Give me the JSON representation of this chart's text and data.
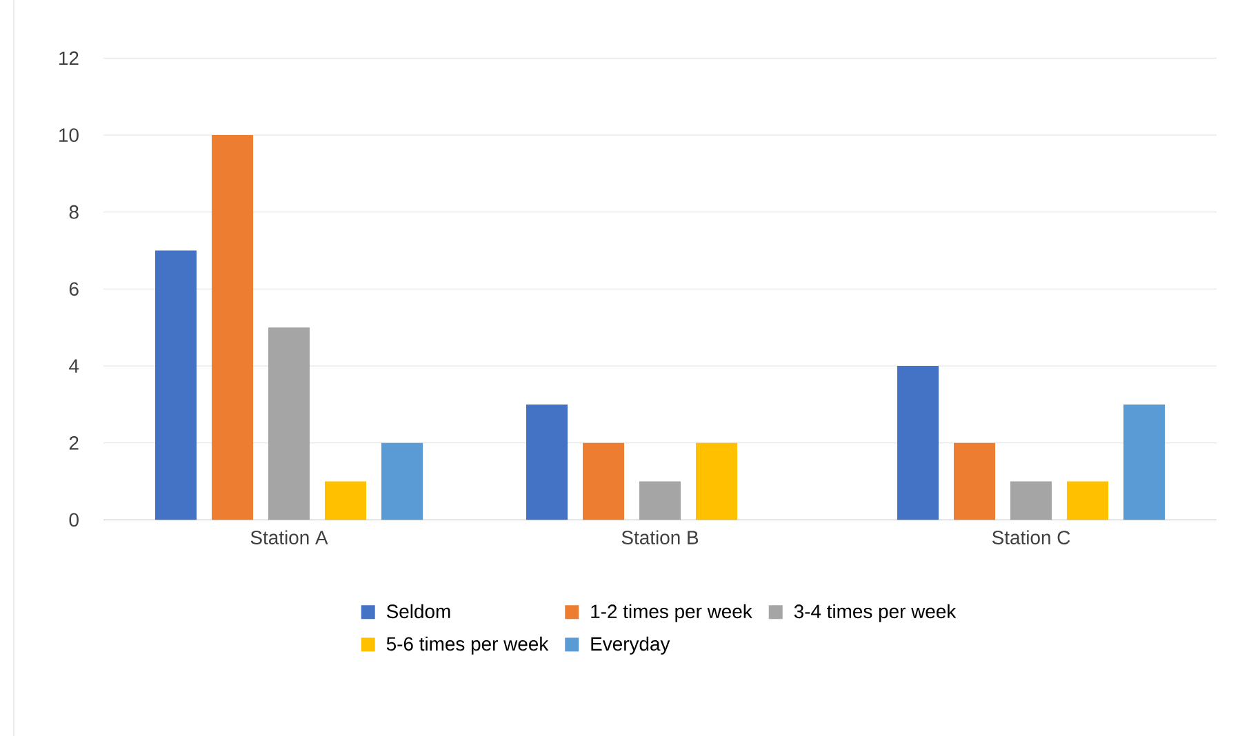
{
  "chart_data": {
    "type": "bar",
    "categories": [
      "Station A",
      "Station B",
      "Station C"
    ],
    "series": [
      {
        "name": "Seldom",
        "color": "#4472c4",
        "values": [
          7,
          3,
          4
        ]
      },
      {
        "name": "1-2 times per week",
        "color": "#ed7d31",
        "values": [
          10,
          2,
          2
        ]
      },
      {
        "name": "3-4 times per week",
        "color": "#a5a5a5",
        "values": [
          5,
          1,
          1
        ]
      },
      {
        "name": "5-6 times per week",
        "color": "#ffc000",
        "values": [
          1,
          2,
          1
        ]
      },
      {
        "name": "Everyday",
        "color": "#5b9bd5",
        "values": [
          2,
          0,
          3
        ]
      }
    ],
    "ylim": [
      0,
      12
    ],
    "yticks": [
      0,
      2,
      4,
      6,
      8,
      10,
      12
    ],
    "grid": "y",
    "legend": "bottom"
  }
}
